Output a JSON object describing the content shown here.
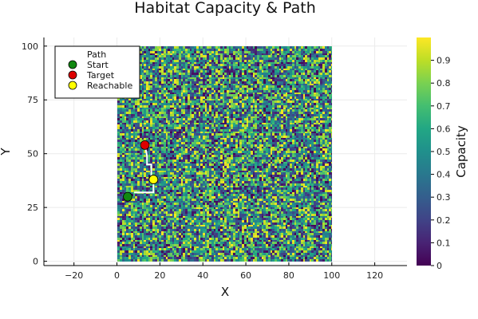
{
  "chart_data": {
    "type": "heatmap",
    "title": "Habitat Capacity & Path",
    "xlabel": "X",
    "ylabel": "Y",
    "xlim": [
      -34,
      135
    ],
    "ylim": [
      -2,
      104
    ],
    "grid_extent": {
      "x": [
        0,
        100
      ],
      "y": [
        0,
        100
      ]
    },
    "grid_cells": 100,
    "x_ticks": [
      -20,
      0,
      20,
      40,
      60,
      80,
      100,
      120
    ],
    "y_ticks": [
      0,
      25,
      50,
      75,
      100
    ],
    "x_tick_labels": [
      "−20",
      "0",
      "20",
      "40",
      "60",
      "80",
      "100",
      "120"
    ],
    "y_tick_labels": [
      "0",
      "25",
      "50",
      "75",
      "100"
    ],
    "colorbar": {
      "label": "Capacity",
      "range": [
        0,
        1
      ],
      "ticks": [
        0,
        0.1,
        0.2,
        0.3,
        0.4,
        0.5,
        0.6,
        0.7,
        0.8,
        0.9
      ],
      "tick_labels": [
        "0",
        "0.1",
        "0.2",
        "0.3",
        "0.4",
        "0.5",
        "0.6",
        "0.7",
        "0.8",
        "0.9"
      ],
      "colormap": "viridis"
    },
    "path": {
      "name": "Path",
      "color": "#ffffff",
      "x": [
        8,
        17,
        17,
        16,
        16,
        14,
        14,
        13
      ],
      "y": [
        32,
        32,
        38,
        38,
        45,
        45,
        49,
        54
      ]
    },
    "points": [
      {
        "name": "Start",
        "x": 5,
        "y": 30,
        "color": "#118811"
      },
      {
        "name": "Target",
        "x": 13,
        "y": 54,
        "color": "#dd0000"
      },
      {
        "name": "Reachable",
        "x": 17,
        "y": 38,
        "color": "#ffff00"
      }
    ],
    "legend": {
      "position": "top-left",
      "entries": [
        "Path",
        "Start",
        "Target",
        "Reachable"
      ]
    },
    "grid": true
  }
}
